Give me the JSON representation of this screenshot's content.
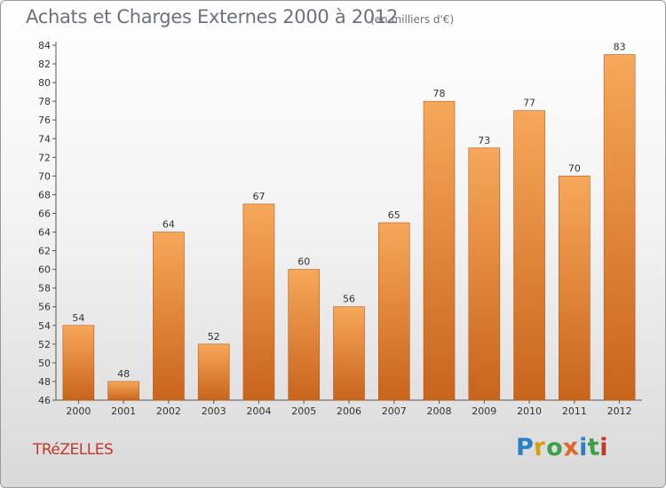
{
  "title": "Achats et Charges Externes 2000 à 2012",
  "subtitle": "(en milliers d'€)",
  "town": "TRéZELLES",
  "logo": {
    "letters": [
      "P",
      "r",
      "o",
      "x",
      "i",
      "t",
      "i"
    ],
    "colors": [
      "#2b7fc4",
      "#d4a017",
      "#3aa14a",
      "#e0662a",
      "#2b7fc4",
      "#3aa14a",
      "#c0392b"
    ]
  },
  "colors": {
    "bar_top": "#f7a85a",
    "bar_bottom": "#c9641c",
    "bar_edge": "#b8591a"
  },
  "chart_data": {
    "type": "bar",
    "title": "Achats et Charges Externes 2000 à 2012",
    "subtitle": "(en milliers d'€)",
    "categories": [
      "2000",
      "2001",
      "2002",
      "2003",
      "2004",
      "2005",
      "2006",
      "2007",
      "2008",
      "2009",
      "2010",
      "2011",
      "2012"
    ],
    "values": [
      54,
      48,
      64,
      52,
      67,
      60,
      56,
      65,
      78,
      73,
      77,
      70,
      83
    ],
    "ylim": [
      46,
      84
    ],
    "yticks": [
      46,
      48,
      50,
      52,
      54,
      56,
      58,
      60,
      62,
      64,
      66,
      68,
      70,
      72,
      74,
      76,
      78,
      80,
      82,
      84
    ],
    "grid": false,
    "data_labels": true,
    "xlabel": "",
    "ylabel": ""
  }
}
